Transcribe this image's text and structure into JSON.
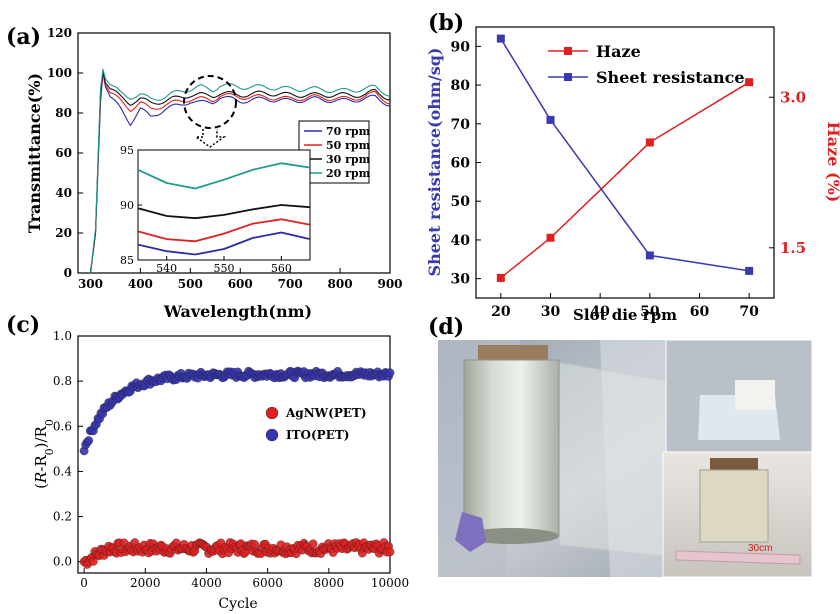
{
  "panels": {
    "a": "(a)",
    "b": "(b)",
    "c": "(c)",
    "d": "(d)"
  },
  "chart_data": [
    {
      "id": "a",
      "type": "line",
      "xlabel": "Wavelength(nm)",
      "ylabel": "Transmittance(%)",
      "xlim": [
        275,
        900
      ],
      "ylim": [
        0,
        120
      ],
      "xticks": [
        300,
        400,
        500,
        600,
        700,
        800,
        900
      ],
      "yticks": [
        0,
        20,
        40,
        60,
        80,
        100,
        120
      ],
      "legend_position": "inset-right",
      "series": [
        {
          "name": "70 rpm",
          "color": "#2b2ba8",
          "x": [
            300,
            310,
            320,
            325,
            330,
            340,
            360,
            380,
            400,
            420,
            450,
            480,
            500,
            520,
            545,
            560,
            600,
            650,
            700,
            750,
            800,
            850,
            870,
            900
          ],
          "y": [
            0,
            20,
            85,
            100,
            93,
            88,
            82,
            75,
            82,
            78,
            82,
            84,
            86,
            85,
            85.5,
            88,
            86,
            87,
            86,
            87,
            86,
            87,
            88,
            84
          ]
        },
        {
          "name": "50 rpm",
          "color": "#e02020",
          "x": [
            300,
            310,
            320,
            325,
            330,
            340,
            360,
            380,
            400,
            420,
            450,
            480,
            500,
            520,
            545,
            560,
            600,
            650,
            700,
            750,
            800,
            850,
            870,
            900
          ],
          "y": [
            0,
            20,
            88,
            100,
            94,
            90,
            86,
            82,
            85,
            82,
            84,
            86,
            87,
            87,
            86.5,
            89,
            88,
            88,
            87,
            88,
            87,
            88,
            90,
            85
          ]
        },
        {
          "name": "30 rpm",
          "color": "#111111",
          "x": [
            300,
            310,
            320,
            325,
            330,
            340,
            360,
            380,
            400,
            420,
            450,
            480,
            500,
            520,
            545,
            560,
            600,
            650,
            700,
            750,
            800,
            850,
            870,
            900
          ],
          "y": [
            0,
            20,
            90,
            101,
            95,
            92,
            88,
            85,
            87,
            85,
            86,
            88,
            89,
            89,
            88.7,
            90,
            89,
            90,
            89,
            89,
            89,
            89,
            91,
            87
          ]
        },
        {
          "name": "20 rpm",
          "color": "#1f9a8e",
          "x": [
            300,
            310,
            320,
            325,
            330,
            340,
            360,
            380,
            400,
            420,
            450,
            480,
            500,
            520,
            545,
            560,
            600,
            650,
            700,
            750,
            800,
            850,
            870,
            900
          ],
          "y": [
            0,
            22,
            92,
            102,
            97,
            94,
            90,
            88,
            89,
            87,
            88,
            91,
            92,
            93,
            91.5,
            94,
            93,
            93,
            92,
            92,
            91,
            92,
            93,
            89
          ]
        }
      ],
      "inset": {
        "xlim": [
          535,
          565
        ],
        "ylim": [
          85,
          95
        ],
        "xticks": [
          540,
          550,
          560
        ],
        "yticks": [
          85,
          90,
          95
        ],
        "series": [
          {
            "color": "#1f9a8e",
            "x": [
              535,
              540,
              545,
              550,
              555,
              560,
              565
            ],
            "y": [
              93.2,
              92.0,
              91.5,
              92.3,
              93.2,
              93.8,
              93.4
            ]
          },
          {
            "color": "#111111",
            "x": [
              535,
              540,
              545,
              550,
              555,
              560,
              565
            ],
            "y": [
              89.7,
              89.0,
              88.8,
              89.1,
              89.6,
              90.0,
              89.8
            ]
          },
          {
            "color": "#e02020",
            "x": [
              535,
              540,
              545,
              550,
              555,
              560,
              565
            ],
            "y": [
              87.6,
              86.9,
              86.7,
              87.4,
              88.3,
              88.7,
              88.2
            ]
          },
          {
            "color": "#2b2ba8",
            "x": [
              535,
              540,
              545,
              550,
              555,
              560,
              565
            ],
            "y": [
              86.4,
              85.8,
              85.5,
              86.0,
              87.0,
              87.5,
              86.9
            ]
          }
        ]
      }
    },
    {
      "id": "b",
      "type": "line",
      "xlabel": "Slot die rpm",
      "ylabel": "Sheet resistance(ohm/sq)",
      "y2label": "Haze (%)",
      "x": [
        20,
        30,
        50,
        70
      ],
      "xlim": [
        15,
        75
      ],
      "xticks": [
        20,
        30,
        40,
        50,
        60,
        70
      ],
      "ylim": [
        25,
        95
      ],
      "yticks": [
        30,
        40,
        50,
        60,
        70,
        80,
        90
      ],
      "y2lim": [
        1.0,
        3.7
      ],
      "y2ticks": [
        1.5,
        3.0
      ],
      "y2ticklabels": [
        "1.5",
        "3.0"
      ],
      "legend_position": "top-right",
      "series": [
        {
          "name": "Haze",
          "axis": "right",
          "color": "#e02020",
          "values": [
            1.2,
            1.6,
            2.55,
            3.15
          ]
        },
        {
          "name": "Sheet resistance",
          "axis": "left",
          "color": "#3a3ab0",
          "values": [
            92,
            71,
            36,
            32
          ]
        }
      ]
    },
    {
      "id": "c",
      "type": "scatter",
      "xlabel": "Cycle",
      "ylabel_parts": [
        "(",
        "R",
        "-R",
        "0",
        ")/R",
        "0"
      ],
      "xlim": [
        -200,
        10000
      ],
      "ylim": [
        -0.05,
        1.0
      ],
      "xticks": [
        0,
        2000,
        4000,
        6000,
        8000,
        10000
      ],
      "yticks": [
        0.0,
        0.2,
        0.4,
        0.6,
        0.8,
        1.0
      ],
      "yticklabels": [
        "0.0",
        "0.2",
        "0.4",
        "0.6",
        "0.8",
        "1.0"
      ],
      "legend_position": "center-right",
      "series": [
        {
          "name": "AgNW(PET)",
          "color": "#e02020",
          "trend": {
            "start": 0.0,
            "end": 0.06,
            "noise": 0.025
          }
        },
        {
          "name": "ITO(PET)",
          "color": "#3535b0",
          "trend": {
            "start": 0.5,
            "end": 0.83,
            "noise": 0.015
          }
        }
      ],
      "points_per_series": 200
    }
  ],
  "photo": {
    "scale_label": "30cm"
  }
}
